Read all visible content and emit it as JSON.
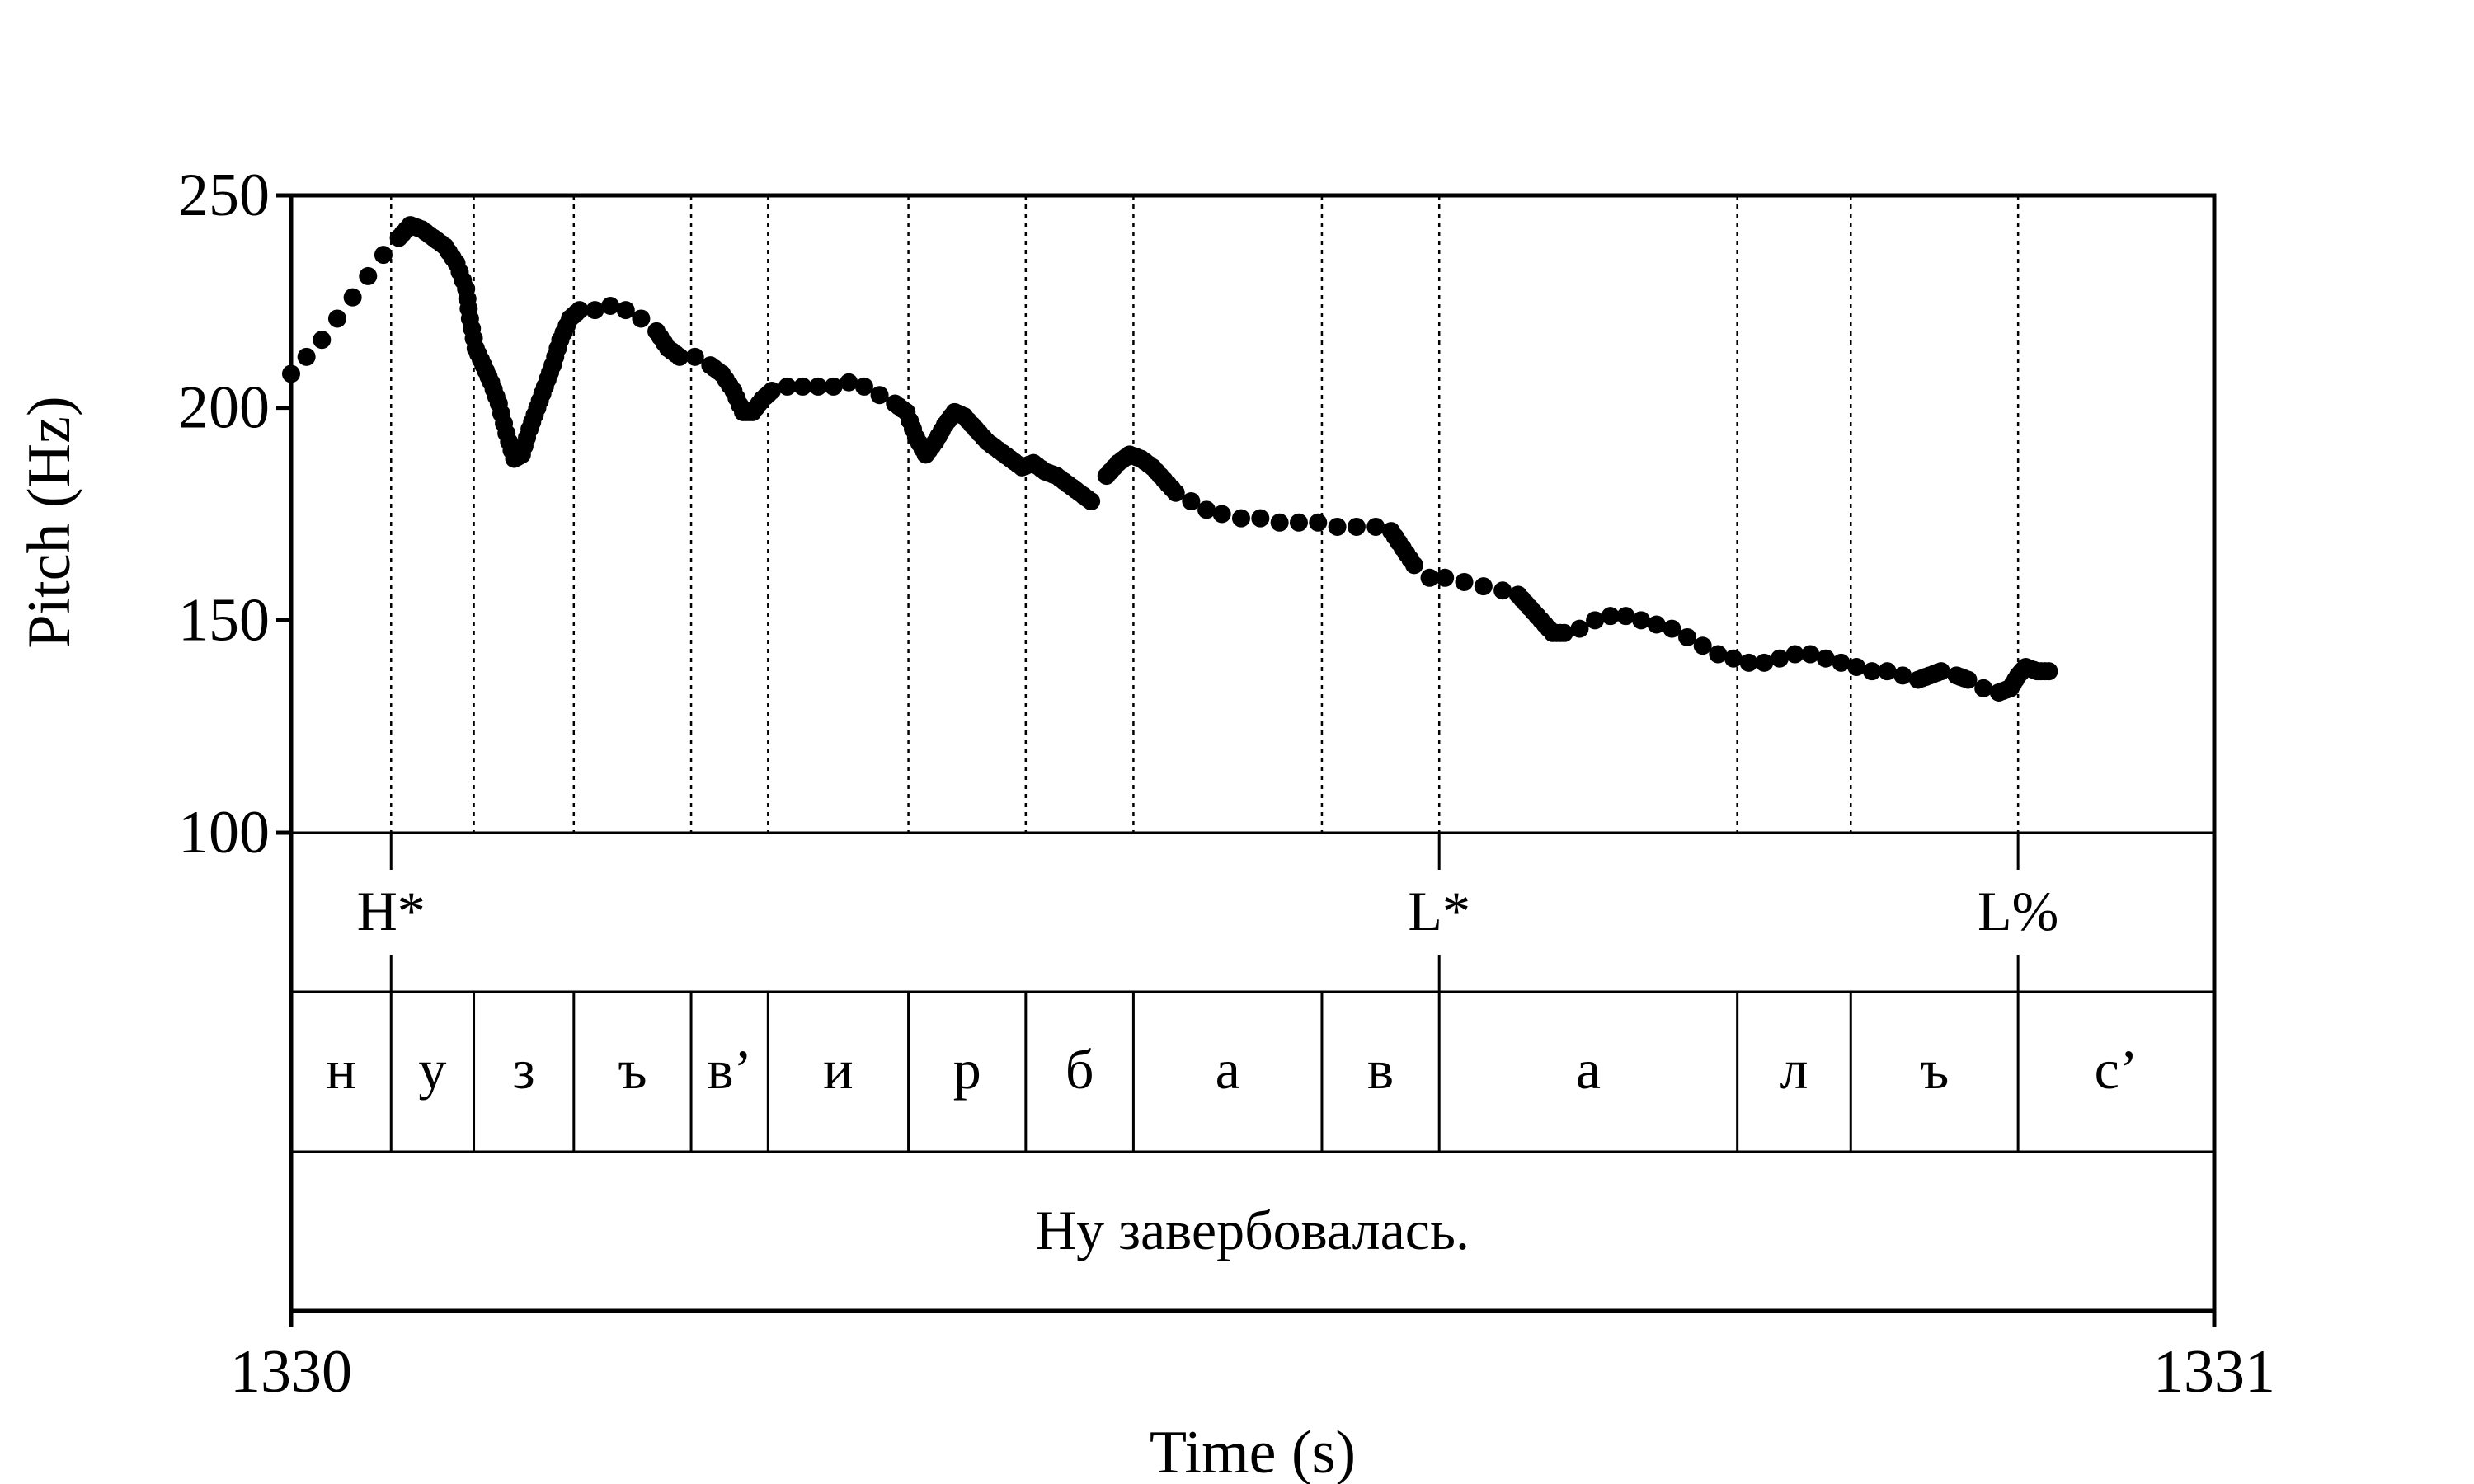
{
  "chart_data": {
    "type": "scatter",
    "xlabel": "Time (s)",
    "ylabel": "Pitch (Hz)",
    "xlim": [
      1330,
      1331
    ],
    "ylim": [
      100,
      250
    ],
    "x_tick_labels": [
      "1330",
      "1331"
    ],
    "y_tick_values": [
      100,
      150,
      200,
      250
    ],
    "y_tick_labels": [
      "100",
      "150",
      "200",
      "250"
    ],
    "tones": [
      {
        "label": "H*",
        "time": 1330.052
      },
      {
        "label": "L*",
        "time": 1330.597
      },
      {
        "label": "L%",
        "time": 1330.898
      }
    ],
    "segments": [
      {
        "label": "н",
        "start": 1330.0,
        "end": 1330.052
      },
      {
        "label": "у",
        "start": 1330.052,
        "end": 1330.095
      },
      {
        "label": "з",
        "start": 1330.095,
        "end": 1330.147
      },
      {
        "label": "ъ",
        "start": 1330.147,
        "end": 1330.208
      },
      {
        "label": "в’",
        "start": 1330.208,
        "end": 1330.248
      },
      {
        "label": "и",
        "start": 1330.248,
        "end": 1330.321
      },
      {
        "label": "р",
        "start": 1330.321,
        "end": 1330.382
      },
      {
        "label": "б",
        "start": 1330.382,
        "end": 1330.438
      },
      {
        "label": "а",
        "start": 1330.438,
        "end": 1330.536
      },
      {
        "label": "в",
        "start": 1330.536,
        "end": 1330.597
      },
      {
        "label": "а",
        "start": 1330.597,
        "end": 1330.752
      },
      {
        "label": "л",
        "start": 1330.752,
        "end": 1330.811
      },
      {
        "label": "ъ",
        "start": 1330.811,
        "end": 1330.898
      },
      {
        "label": "с’",
        "start": 1330.898,
        "end": 1331.0
      }
    ],
    "phrase": {
      "label": "Ну завербовалась.",
      "start": 1330.0,
      "end": 1331.0
    },
    "pitch_contour": [
      [
        1330.0,
        208
      ],
      [
        1330.008,
        212
      ],
      [
        1330.016,
        216
      ],
      [
        1330.024,
        221
      ],
      [
        1330.032,
        226
      ],
      [
        1330.04,
        231
      ],
      [
        1330.048,
        236
      ],
      [
        1330.056,
        240
      ],
      [
        1330.062,
        243
      ],
      [
        1330.068,
        242
      ],
      [
        1330.074,
        240
      ],
      [
        1330.08,
        238
      ],
      [
        1330.086,
        234
      ],
      [
        1330.091,
        228
      ],
      [
        1330.093,
        221
      ],
      [
        1330.096,
        214
      ],
      [
        1330.1,
        210
      ],
      [
        1330.104,
        206
      ],
      [
        1330.108,
        201
      ],
      [
        1330.112,
        194
      ],
      [
        1330.116,
        188
      ],
      [
        1330.12,
        189
      ],
      [
        1330.124,
        195
      ],
      [
        1330.128,
        200
      ],
      [
        1330.132,
        205
      ],
      [
        1330.136,
        210
      ],
      [
        1330.14,
        216
      ],
      [
        1330.145,
        221
      ],
      [
        1330.15,
        223
      ],
      [
        1330.158,
        223
      ],
      [
        1330.166,
        224
      ],
      [
        1330.174,
        223
      ],
      [
        1330.182,
        221
      ],
      [
        1330.19,
        218
      ],
      [
        1330.196,
        214
      ],
      [
        1330.202,
        212
      ],
      [
        1330.21,
        212
      ],
      [
        1330.218,
        210
      ],
      [
        1330.224,
        208
      ],
      [
        1330.23,
        204
      ],
      [
        1330.235,
        199
      ],
      [
        1330.24,
        199
      ],
      [
        1330.245,
        202
      ],
      [
        1330.25,
        204
      ],
      [
        1330.258,
        205
      ],
      [
        1330.266,
        205
      ],
      [
        1330.274,
        205
      ],
      [
        1330.282,
        205
      ],
      [
        1330.29,
        206
      ],
      [
        1330.298,
        205
      ],
      [
        1330.306,
        203
      ],
      [
        1330.314,
        201
      ],
      [
        1330.32,
        199
      ],
      [
        1330.325,
        193
      ],
      [
        1330.33,
        189
      ],
      [
        1330.335,
        192
      ],
      [
        1330.34,
        196
      ],
      [
        1330.345,
        199
      ],
      [
        1330.35,
        198
      ],
      [
        1330.356,
        195
      ],
      [
        1330.362,
        192
      ],
      [
        1330.368,
        190
      ],
      [
        1330.374,
        188
      ],
      [
        1330.38,
        186
      ],
      [
        1330.386,
        187
      ],
      [
        1330.392,
        185
      ],
      [
        1330.398,
        184
      ],
      [
        1330.404,
        182
      ],
      [
        1330.41,
        180
      ],
      [
        1330.416,
        178
      ],
      [
        1330.424,
        184
      ],
      [
        1330.43,
        187
      ],
      [
        1330.436,
        189
      ],
      [
        1330.442,
        188
      ],
      [
        1330.448,
        186
      ],
      [
        1330.454,
        183
      ],
      [
        1330.46,
        180
      ],
      [
        1330.468,
        178
      ],
      [
        1330.476,
        176
      ],
      [
        1330.484,
        175
      ],
      [
        1330.494,
        174
      ],
      [
        1330.504,
        174
      ],
      [
        1330.514,
        173
      ],
      [
        1330.524,
        173
      ],
      [
        1330.534,
        173
      ],
      [
        1330.544,
        172
      ],
      [
        1330.554,
        172
      ],
      [
        1330.564,
        172
      ],
      [
        1330.572,
        171
      ],
      [
        1330.578,
        167
      ],
      [
        1330.584,
        163
      ],
      [
        1330.592,
        160
      ],
      [
        1330.6,
        160
      ],
      [
        1330.61,
        159
      ],
      [
        1330.62,
        158
      ],
      [
        1330.63,
        157
      ],
      [
        1330.638,
        156
      ],
      [
        1330.644,
        153
      ],
      [
        1330.65,
        150
      ],
      [
        1330.656,
        147
      ],
      [
        1330.662,
        147
      ],
      [
        1330.67,
        148
      ],
      [
        1330.678,
        150
      ],
      [
        1330.686,
        151
      ],
      [
        1330.694,
        151
      ],
      [
        1330.702,
        150
      ],
      [
        1330.71,
        149
      ],
      [
        1330.718,
        148
      ],
      [
        1330.726,
        146
      ],
      [
        1330.734,
        144
      ],
      [
        1330.742,
        142
      ],
      [
        1330.75,
        141
      ],
      [
        1330.758,
        140
      ],
      [
        1330.766,
        140
      ],
      [
        1330.774,
        141
      ],
      [
        1330.782,
        142
      ],
      [
        1330.79,
        142
      ],
      [
        1330.798,
        141
      ],
      [
        1330.806,
        140
      ],
      [
        1330.814,
        139
      ],
      [
        1330.822,
        138
      ],
      [
        1330.83,
        138
      ],
      [
        1330.838,
        137
      ],
      [
        1330.846,
        136
      ],
      [
        1330.852,
        137
      ],
      [
        1330.858,
        138
      ],
      [
        1330.866,
        137
      ],
      [
        1330.872,
        136
      ],
      [
        1330.88,
        134
      ],
      [
        1330.888,
        133
      ],
      [
        1330.894,
        134
      ],
      [
        1330.898,
        137
      ],
      [
        1330.902,
        139
      ],
      [
        1330.908,
        138
      ],
      [
        1330.914,
        138
      ]
    ]
  }
}
